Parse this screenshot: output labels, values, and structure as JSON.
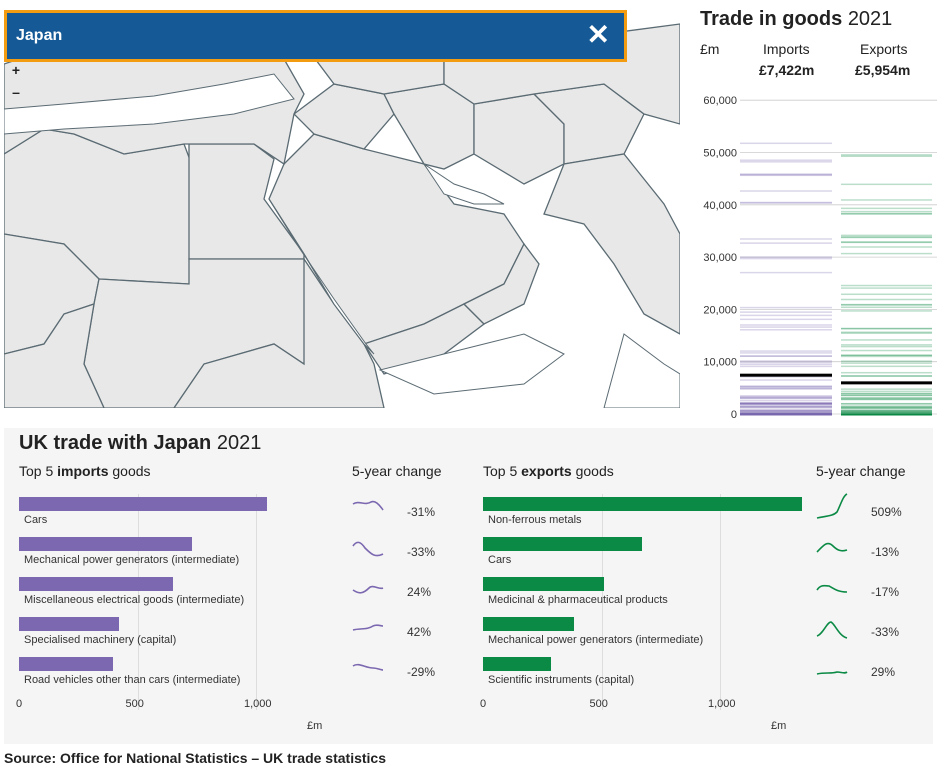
{
  "search": {
    "value": "Japan"
  },
  "zoom": {
    "in": "+",
    "out": "–"
  },
  "trade_panel": {
    "title": "Trade in goods",
    "year": "2021",
    "unit": "£m",
    "col_imports": "Imports",
    "col_exports": "Exports",
    "imports_total": "£7,422m",
    "exports_total": "£5,954m",
    "axis_ticks": [
      "60,000",
      "50,000",
      "40,000",
      "30,000",
      "20,000",
      "10,000",
      "0"
    ],
    "import_color": "#7b68b0",
    "export_color": "#0b8a45"
  },
  "uk_trade": {
    "title": "UK trade with Japan",
    "year": "2021",
    "imports_header_prefix": "Top 5",
    "imports_header_bold": "imports",
    "imports_header_suffix": "goods",
    "exports_header_prefix": "Top 5",
    "exports_header_bold": "exports",
    "exports_header_suffix": "goods",
    "change_header": "5-year change",
    "unit": "£m",
    "ticks": [
      "0",
      "500",
      "1,000"
    ],
    "imports": [
      {
        "label": "Cars",
        "value": 1045,
        "change": "-31%"
      },
      {
        "label": "Mechanical power generators (intermediate)",
        "value": 728,
        "change": "-33%"
      },
      {
        "label": "Miscellaneous electrical goods (intermediate)",
        "value": 650,
        "change": "24%"
      },
      {
        "label": "Specialised machinery (capital)",
        "value": 420,
        "change": "42%"
      },
      {
        "label": "Road vehicles other than cars (intermediate)",
        "value": 395,
        "change": "-29%"
      }
    ],
    "exports": [
      {
        "label": "Non-ferrous metals",
        "value": 1345,
        "change": "509%"
      },
      {
        "label": "Cars",
        "value": 670,
        "change": "-13%"
      },
      {
        "label": "Medicinal & pharmaceutical products",
        "value": 510,
        "change": "-17%"
      },
      {
        "label": "Mechanical power generators (intermediate)",
        "value": 385,
        "change": "-33%"
      },
      {
        "label": "Scientific instruments (capital)",
        "value": 285,
        "change": "29%"
      }
    ]
  },
  "source": "Source: Office for National Statistics – UK trade statistics"
}
